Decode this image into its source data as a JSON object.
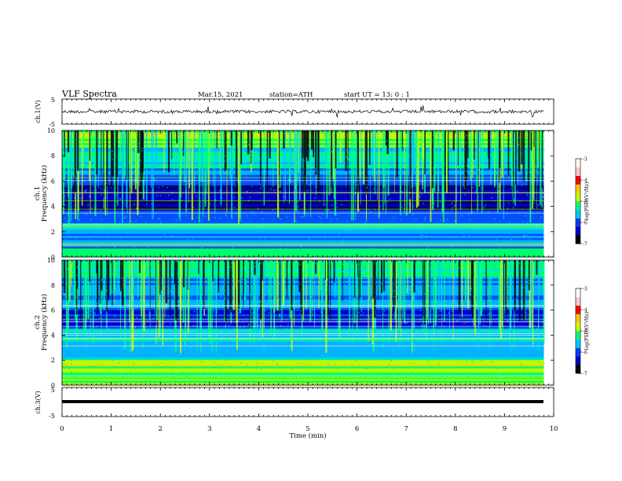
{
  "header": {
    "title": "VLF  Spectra",
    "date": "Mar.15, 2021",
    "station": "station=ATH",
    "start": "start  UT  =   13: 0   : 1"
  },
  "chart_data": [
    {
      "type": "line",
      "ylabel": "ch.1(V)",
      "ylim": [
        -5,
        5
      ],
      "y_ticks": [
        "5",
        "-5"
      ],
      "description_series": "waveform voltage vs time",
      "xlim": [
        0,
        10
      ]
    },
    {
      "type": "heatmap",
      "ylabel": "ch.1\nFrequency  (kHz)",
      "ylabel_line1": "ch.1",
      "ylabel_line2": "Frequency  (kHz)",
      "ylim": [
        0,
        10
      ],
      "y_ticks": [
        "0",
        "2",
        "4",
        "6",
        "8",
        "10"
      ],
      "xlim": [
        0,
        10
      ],
      "colorbar": {
        "label": "log(PSD)(V²/Hz)",
        "ticks": [
          "-3",
          "-4",
          "-5",
          "-6",
          "-7"
        ],
        "range": [
          -7,
          -3
        ]
      }
    },
    {
      "type": "heatmap",
      "ylabel": "ch.2\nFrequency  (kHz)",
      "ylabel_line1": "ch.2",
      "ylabel_line2": "Frequency  (kHz)",
      "ylim": [
        0,
        10
      ],
      "y_ticks": [
        "0",
        "2",
        "4",
        "6",
        "8",
        "10"
      ],
      "xlim": [
        0,
        10
      ],
      "colorbar": {
        "label": "log(PSD)(V²/Hz)",
        "ticks": [
          "-3",
          "-4",
          "-5",
          "-6",
          "-7"
        ],
        "range": [
          -7,
          -3
        ]
      }
    },
    {
      "type": "line",
      "ylabel": "ch.3(V)",
      "ylim": [
        -5,
        5
      ],
      "y_ticks": [
        "5",
        "-5"
      ],
      "xlim": [
        0,
        10
      ]
    }
  ],
  "x_axis": {
    "label": "Time  (min)",
    "ticks": [
      "0",
      "1",
      "2",
      "3",
      "4",
      "5",
      "6",
      "7",
      "8",
      "9",
      "10"
    ],
    "range": [
      0,
      10
    ],
    "data_end": 9.8
  },
  "colors": {
    "colormap": [
      "#000000",
      "#0000c8",
      "#0040ff",
      "#00c8ff",
      "#00ff80",
      "#c8ff00",
      "#ffc800",
      "#ff0000",
      "#ffc8c8",
      "#ffffff"
    ]
  }
}
